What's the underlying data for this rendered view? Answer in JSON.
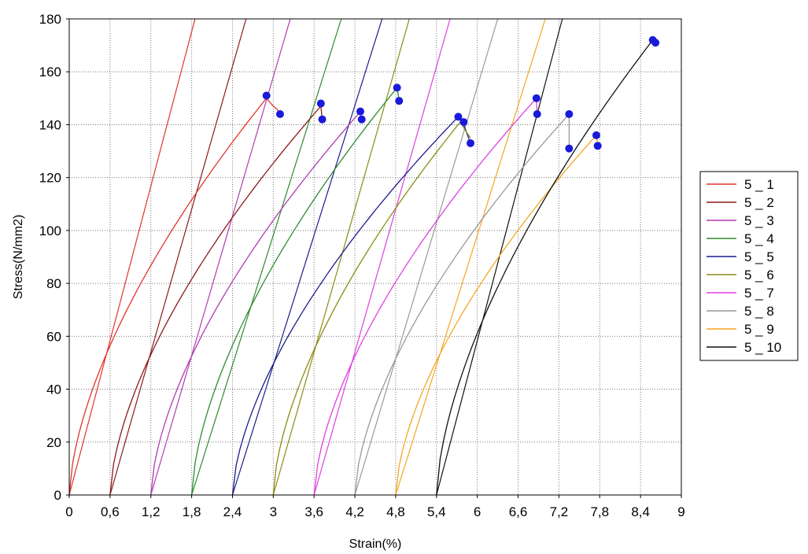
{
  "chart_data": {
    "type": "line",
    "title": "",
    "xlabel": "Strain(%)",
    "ylabel": "Stress(N/mm2)",
    "xlim": [
      0,
      9
    ],
    "ylim": [
      0,
      180
    ],
    "x_ticks": [
      0,
      0.6,
      1.2,
      1.8,
      2.4,
      3,
      3.6,
      4.2,
      4.8,
      5.4,
      6,
      6.6,
      7.2,
      7.8,
      8.4,
      9
    ],
    "x_tick_labels": [
      "0",
      "0,6",
      "1,2",
      "1,8",
      "2,4",
      "3",
      "3,6",
      "4,2",
      "4,8",
      "5,4",
      "6",
      "6,6",
      "7,2",
      "7,8",
      "8,4",
      "9"
    ],
    "y_ticks": [
      0,
      20,
      40,
      60,
      80,
      100,
      120,
      140,
      160,
      180
    ],
    "y_tick_labels": [
      "0",
      "20",
      "40",
      "60",
      "80",
      "100",
      "120",
      "140",
      "160",
      "180"
    ],
    "grid": true,
    "legend_position": "right",
    "marker_color": "#1a1adb",
    "series": [
      {
        "name": "5 _ 1",
        "color": "#e0352b",
        "x0": 0.0,
        "xpeak": 2.9,
        "ypeak": 150,
        "tail": [
          [
            3.0,
            147
          ],
          [
            3.05,
            146
          ],
          [
            3.1,
            144
          ]
        ],
        "markers": [
          [
            2.9,
            151
          ],
          [
            3.1,
            144
          ]
        ]
      },
      {
        "name": "5 _ 2",
        "color": "#8b1a1a",
        "x0": 0.6,
        "xpeak": 3.7,
        "ypeak": 147,
        "tail": [
          [
            3.72,
            142
          ]
        ],
        "markers": [
          [
            3.7,
            148
          ],
          [
            3.72,
            142
          ]
        ]
      },
      {
        "name": "5 _ 3",
        "color": "#b03cb0",
        "x0": 1.2,
        "xpeak": 4.25,
        "ypeak": 144,
        "tail": [
          [
            4.28,
            145
          ],
          [
            4.3,
            142
          ]
        ],
        "markers": [
          [
            4.28,
            145
          ],
          [
            4.3,
            142
          ]
        ]
      },
      {
        "name": "5 _ 4",
        "color": "#2e8b2e",
        "x0": 1.8,
        "xpeak": 4.82,
        "ypeak": 154,
        "tail": [
          [
            4.85,
            149
          ]
        ],
        "markers": [
          [
            4.82,
            154
          ],
          [
            4.85,
            149
          ]
        ]
      },
      {
        "name": "5 _ 5",
        "color": "#1c1c8c",
        "x0": 2.4,
        "xpeak": 5.72,
        "ypeak": 143,
        "tail": [
          [
            5.8,
            140
          ],
          [
            5.9,
            133
          ]
        ],
        "markers": [
          [
            5.72,
            143
          ],
          [
            5.8,
            141
          ],
          [
            5.9,
            133
          ]
        ]
      },
      {
        "name": "5 _ 6",
        "color": "#8b8b14",
        "x0": 3.0,
        "xpeak": 5.75,
        "ypeak": 141,
        "tail": [
          [
            5.82,
            138
          ],
          [
            5.9,
            135
          ]
        ],
        "markers": []
      },
      {
        "name": "5 _ 7",
        "color": "#e040e0",
        "x0": 3.6,
        "xpeak": 6.87,
        "ypeak": 150,
        "tail": [
          [
            6.88,
            144
          ]
        ],
        "markers": [
          [
            6.87,
            150
          ],
          [
            6.88,
            144
          ]
        ]
      },
      {
        "name": "5 _ 8",
        "color": "#999999",
        "x0": 4.2,
        "xpeak": 7.35,
        "ypeak": 144,
        "tail": [
          [
            7.35,
            131
          ]
        ],
        "markers": [
          [
            7.35,
            144
          ],
          [
            7.35,
            131
          ]
        ]
      },
      {
        "name": "5 _ 9",
        "color": "#f5a623",
        "x0": 4.8,
        "xpeak": 7.75,
        "ypeak": 136,
        "tail": [
          [
            7.77,
            132
          ]
        ],
        "markers": [
          [
            7.75,
            136
          ],
          [
            7.77,
            132
          ]
        ]
      },
      {
        "name": "5 _ 10",
        "color": "#111111",
        "x0": 5.4,
        "xpeak": 8.58,
        "ypeak": 172,
        "tail": [
          [
            8.62,
            171
          ]
        ],
        "markers": [
          [
            8.58,
            172
          ],
          [
            8.62,
            171
          ]
        ]
      }
    ],
    "unloading_lines": [
      {
        "color": "#e0352b",
        "from": [
          0.0,
          0
        ],
        "to": [
          1.85,
          180
        ]
      },
      {
        "color": "#8b1a1a",
        "from": [
          0.6,
          0
        ],
        "to": [
          2.6,
          180
        ]
      },
      {
        "color": "#b03cb0",
        "from": [
          1.2,
          0
        ],
        "to": [
          3.25,
          180
        ]
      },
      {
        "color": "#2e8b2e",
        "from": [
          1.8,
          0
        ],
        "to": [
          4.0,
          180
        ]
      },
      {
        "color": "#1c1c8c",
        "from": [
          2.4,
          0
        ],
        "to": [
          4.6,
          180
        ]
      },
      {
        "color": "#8b8b14",
        "from": [
          3.0,
          0
        ],
        "to": [
          5.0,
          180
        ]
      },
      {
        "color": "#e040e0",
        "from": [
          3.6,
          0
        ],
        "to": [
          5.6,
          180
        ]
      },
      {
        "color": "#999999",
        "from": [
          4.2,
          0
        ],
        "to": [
          6.3,
          180
        ]
      },
      {
        "color": "#f5a623",
        "from": [
          4.8,
          0
        ],
        "to": [
          7.0,
          180
        ]
      },
      {
        "color": "#111111",
        "from": [
          5.4,
          0
        ],
        "to": [
          7.25,
          180
        ]
      }
    ]
  }
}
